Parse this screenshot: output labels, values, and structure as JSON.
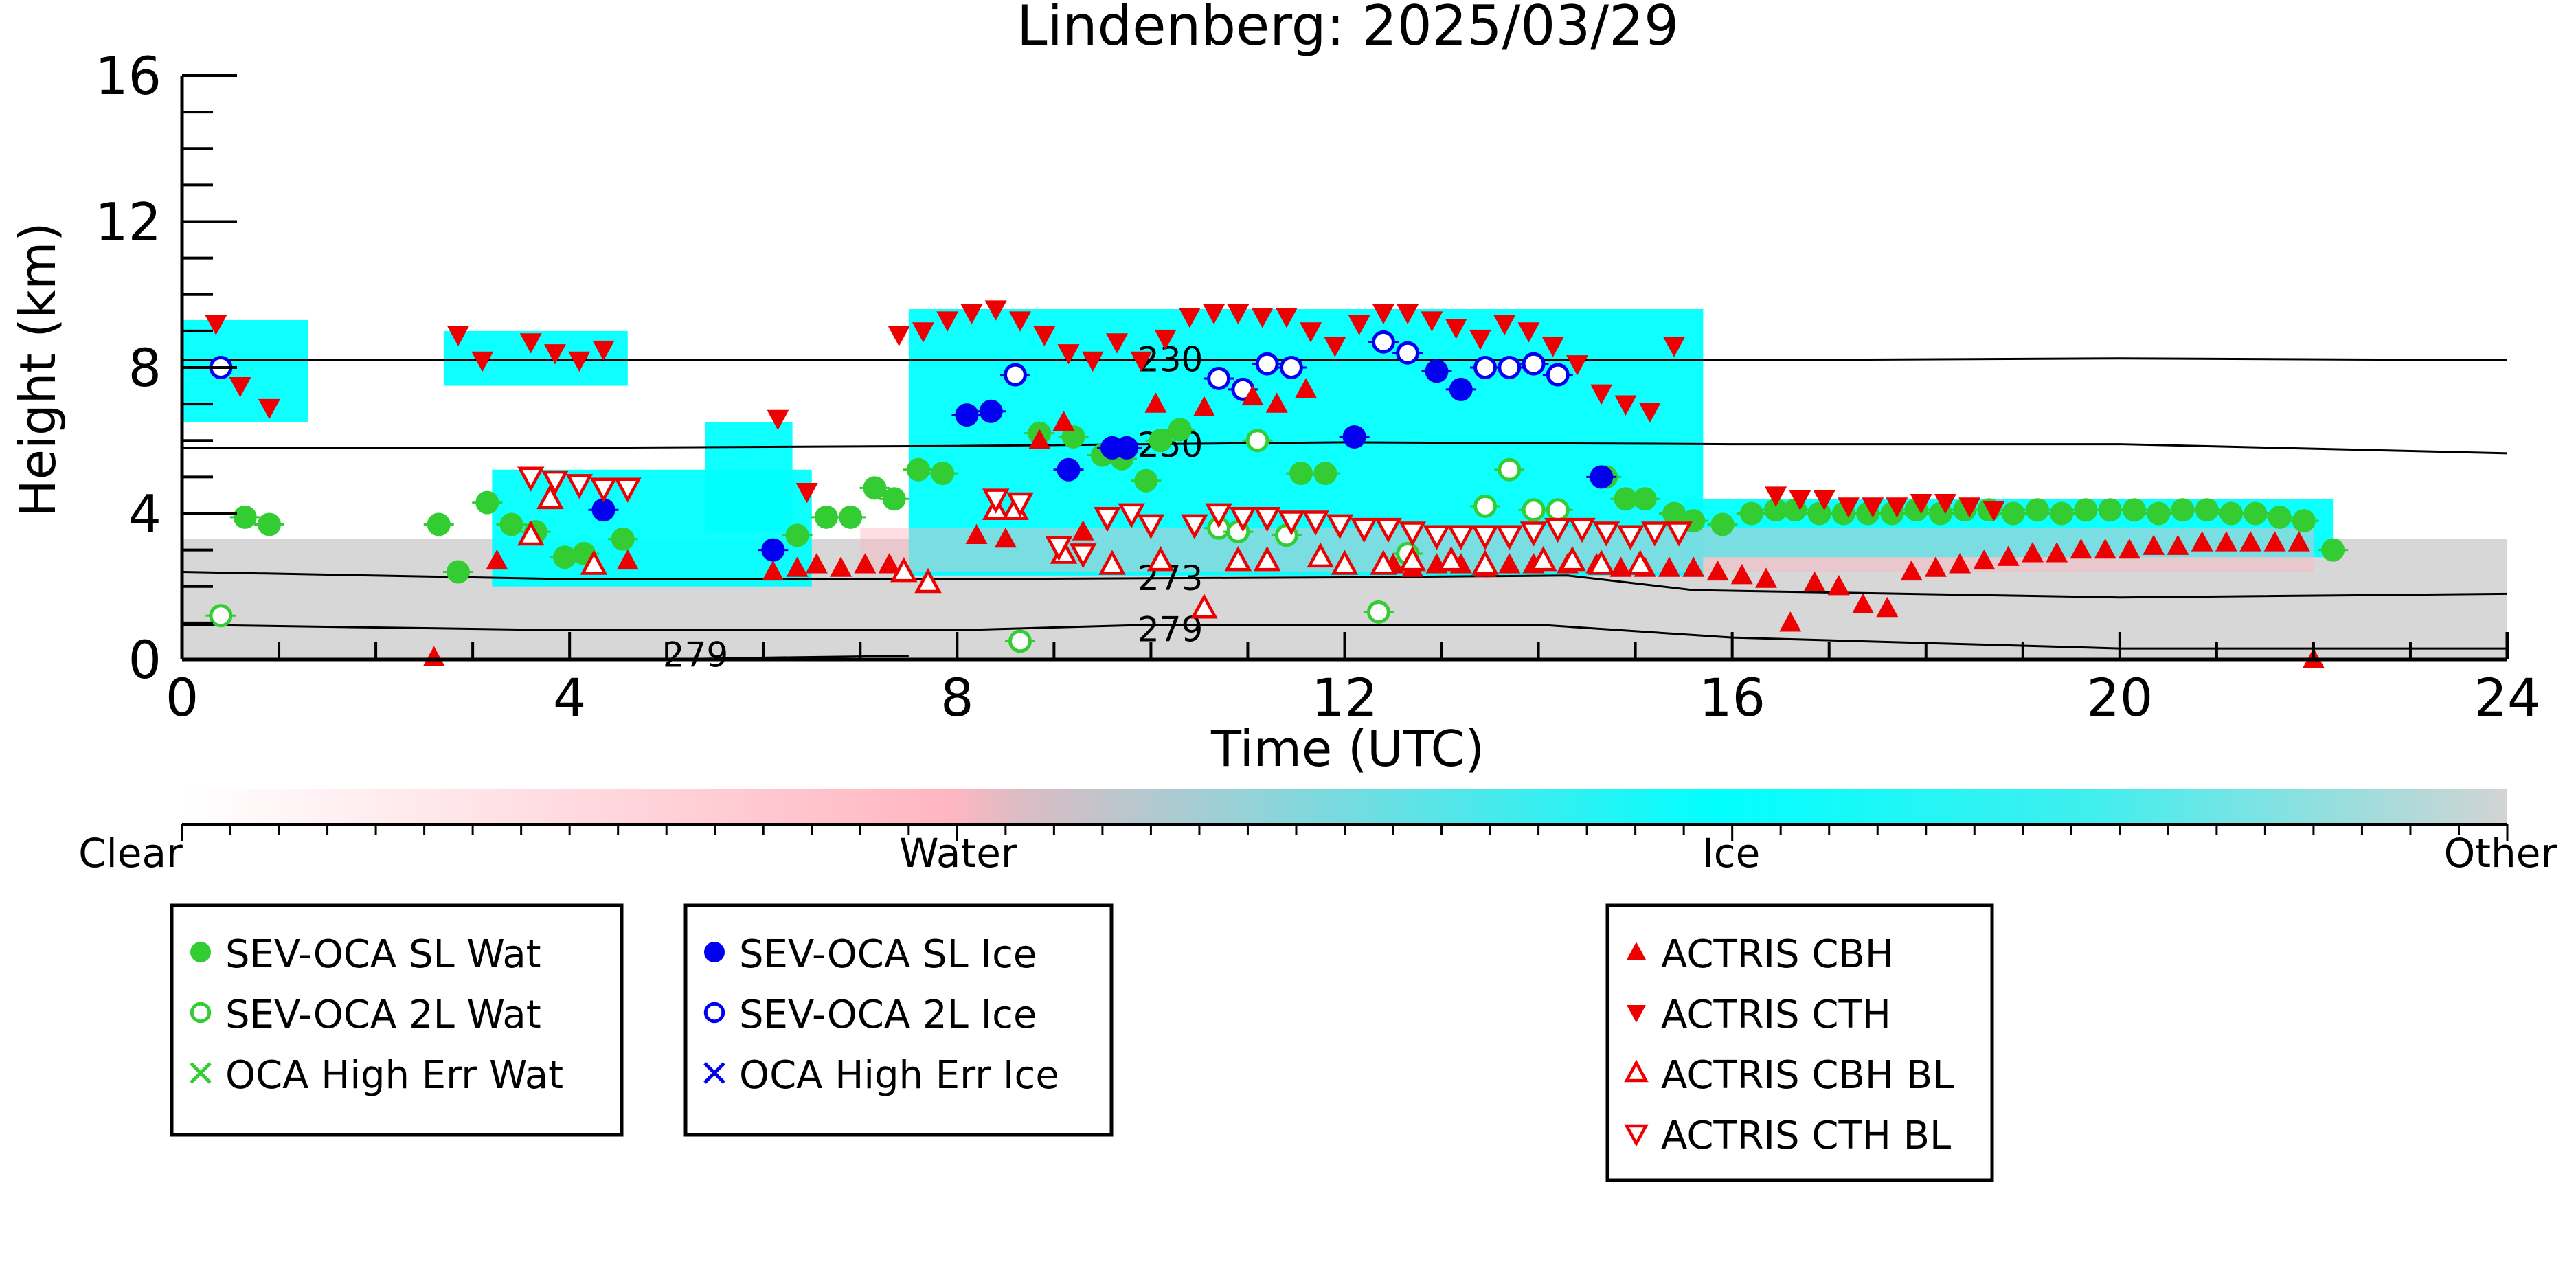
{
  "chart_data": {
    "type": "scatter",
    "title": "Lindenberg: 2025/03/29",
    "xlabel": "Time (UTC)",
    "ylabel": "Height (km)",
    "xlim": [
      0,
      24
    ],
    "ylim": [
      0,
      16
    ],
    "x_ticks": [
      "0",
      "4",
      "8",
      "12",
      "16",
      "20",
      "24"
    ],
    "y_ticks": [
      "0",
      "4",
      "8",
      "12",
      "16"
    ],
    "grid": false,
    "background_field": {
      "name": "cloud classification",
      "colorbar_labels": [
        "Clear",
        "Water",
        "Ice",
        "Other"
      ],
      "colorbar_colors": [
        "#ffffff",
        "#ffb6c1",
        "#00ffff",
        "#d3d3d3"
      ],
      "cloud_regions": [
        {
          "class": "Ice",
          "x": [
            0.0,
            1.3
          ],
          "y": [
            6.5,
            9.3
          ]
        },
        {
          "class": "Ice",
          "x": [
            2.7,
            4.6
          ],
          "y": [
            7.5,
            9.0
          ]
        },
        {
          "class": "Ice",
          "x": [
            3.2,
            6.5
          ],
          "y": [
            2.0,
            5.2
          ]
        },
        {
          "class": "Ice",
          "x": [
            5.4,
            6.3
          ],
          "y": [
            3.5,
            6.5
          ]
        },
        {
          "class": "Ice",
          "x": [
            7.5,
            15.7
          ],
          "y": [
            2.3,
            9.6
          ]
        },
        {
          "class": "Ice",
          "x": [
            15.5,
            22.2
          ],
          "y": [
            2.8,
            4.4
          ]
        },
        {
          "class": "Water",
          "x": [
            7.0,
            22.0
          ],
          "y": [
            2.4,
            3.6
          ]
        },
        {
          "class": "Other",
          "x": [
            0.0,
            24.0
          ],
          "y": [
            0.0,
            3.3
          ]
        }
      ]
    },
    "isotherms": [
      {
        "label": "230",
        "x": [
          0,
          4,
          8,
          12,
          16,
          20,
          24
        ],
        "y": [
          8.2,
          8.2,
          8.2,
          8.2,
          8.2,
          8.25,
          8.2
        ]
      },
      {
        "label": "250",
        "x": [
          0,
          4,
          8,
          12,
          16,
          20,
          24
        ],
        "y": [
          5.8,
          5.8,
          5.85,
          5.95,
          5.9,
          5.9,
          5.65
        ]
      },
      {
        "label": "273",
        "x": [
          0,
          4,
          8,
          12,
          14.3,
          15.6,
          20,
          24
        ],
        "y": [
          2.4,
          2.2,
          2.2,
          2.25,
          2.3,
          1.9,
          1.7,
          1.8
        ]
      },
      {
        "label": "279",
        "x": [
          0,
          4,
          8,
          10,
          14,
          16,
          20,
          24
        ],
        "y": [
          0.95,
          0.8,
          0.8,
          0.95,
          0.95,
          0.6,
          0.3,
          0.3
        ]
      },
      {
        "label": "279",
        "x": [
          5.0,
          6.0,
          7.5
        ],
        "y": [
          0.0,
          0.05,
          0.1
        ]
      }
    ],
    "series": [
      {
        "name": "SEV-OCA SL Wat",
        "marker": "filled-circle",
        "color": "#33cc33",
        "x": [
          0.65,
          0.9,
          2.65,
          2.85,
          3.15,
          3.4,
          3.65,
          3.95,
          4.15,
          4.55,
          6.35,
          6.65,
          6.9,
          7.15,
          7.35,
          7.6,
          7.85,
          8.85,
          9.2,
          9.5,
          9.7,
          9.95,
          10.1,
          10.3,
          11.55,
          11.8,
          14.7,
          14.9,
          15.1,
          15.4,
          15.6,
          15.9,
          16.2,
          16.45,
          16.65,
          16.9,
          17.15,
          17.4,
          17.65,
          17.9,
          18.15,
          18.4,
          18.65,
          18.9,
          19.15,
          19.4,
          19.65,
          19.9,
          20.15,
          20.4,
          20.65,
          20.9,
          21.15,
          21.4,
          21.65,
          21.9,
          22.2
        ],
        "y": [
          3.9,
          3.7,
          3.7,
          2.4,
          4.3,
          3.7,
          3.5,
          2.8,
          2.9,
          3.3,
          3.4,
          3.9,
          3.9,
          4.7,
          4.4,
          5.2,
          5.1,
          6.2,
          6.1,
          5.6,
          5.5,
          4.9,
          6.0,
          6.3,
          5.1,
          5.1,
          5.0,
          4.4,
          4.4,
          4.0,
          3.8,
          3.7,
          4.0,
          4.1,
          4.1,
          4.0,
          4.0,
          4.0,
          4.0,
          4.1,
          4.0,
          4.1,
          4.1,
          4.0,
          4.1,
          4.0,
          4.1,
          4.1,
          4.1,
          4.0,
          4.1,
          4.1,
          4.0,
          4.0,
          3.9,
          3.8,
          3.0
        ]
      },
      {
        "name": "SEV-OCA 2L Wat",
        "marker": "open-circle",
        "color": "#33cc33",
        "x": [
          0.4,
          8.65,
          10.7,
          10.9,
          11.1,
          11.4,
          12.35,
          12.65,
          13.45,
          13.7,
          13.95,
          14.2
        ],
        "y": [
          1.2,
          0.5,
          3.6,
          3.5,
          6.0,
          3.4,
          1.3,
          2.9,
          4.2,
          5.2,
          4.1,
          4.1
        ]
      },
      {
        "name": "OCA High Err Wat",
        "marker": "x",
        "color": "#33cc33",
        "x": [],
        "y": []
      },
      {
        "name": "SEV-OCA SL Ice",
        "marker": "filled-circle",
        "color": "#0000ee",
        "x": [
          4.35,
          6.1,
          8.1,
          8.35,
          9.15,
          9.6,
          9.75,
          12.1,
          12.95,
          13.2,
          14.65
        ],
        "y": [
          4.1,
          3.0,
          6.7,
          6.8,
          5.2,
          5.8,
          5.8,
          6.1,
          7.9,
          7.4,
          5.0
        ]
      },
      {
        "name": "SEV-OCA 2L Ice",
        "marker": "open-circle",
        "color": "#0000ee",
        "x": [
          0.4,
          8.6,
          10.7,
          10.95,
          11.2,
          11.45,
          12.4,
          12.65,
          13.45,
          13.7,
          13.95,
          14.2
        ],
        "y": [
          8.0,
          7.8,
          7.7,
          7.4,
          8.1,
          8.0,
          8.7,
          8.4,
          8.0,
          8.0,
          8.1,
          7.8
        ]
      },
      {
        "name": "OCA High Err Ice",
        "marker": "x",
        "color": "#0000ee",
        "x": [],
        "y": []
      },
      {
        "name": "ACTRIS CBH",
        "marker": "triangle-up-filled",
        "color": "#ee0000",
        "x": [
          2.6,
          3.25,
          4.6,
          6.1,
          6.35,
          6.55,
          6.8,
          7.05,
          7.3,
          8.2,
          8.5,
          8.85,
          9.1,
          9.3,
          10.05,
          10.55,
          11.05,
          11.3,
          11.6,
          12.5,
          12.7,
          12.95,
          13.2,
          13.45,
          13.7,
          13.95,
          14.3,
          14.6,
          14.85,
          15.1,
          15.35,
          15.6,
          15.85,
          16.1,
          16.35,
          16.6,
          16.85,
          17.1,
          17.35,
          17.6,
          17.85,
          18.1,
          18.35,
          18.6,
          18.85,
          19.1,
          19.35,
          19.6,
          19.85,
          20.1,
          20.35,
          20.6,
          20.85,
          21.1,
          21.35,
          21.6,
          21.85,
          22.0
        ],
        "y": [
          0.05,
          2.7,
          2.7,
          2.4,
          2.5,
          2.6,
          2.5,
          2.6,
          2.6,
          3.4,
          3.3,
          6.0,
          6.5,
          3.5,
          7.0,
          6.9,
          7.2,
          7.0,
          7.4,
          2.6,
          2.5,
          2.6,
          2.6,
          2.5,
          2.6,
          2.6,
          2.6,
          2.6,
          2.5,
          2.5,
          2.5,
          2.5,
          2.4,
          2.3,
          2.2,
          1.0,
          2.1,
          2.0,
          1.5,
          1.4,
          2.4,
          2.5,
          2.6,
          2.7,
          2.8,
          2.9,
          2.9,
          3.0,
          3.0,
          3.0,
          3.1,
          3.1,
          3.2,
          3.2,
          3.2,
          3.2,
          3.2,
          0.0
        ]
      },
      {
        "name": "ACTRIS CTH",
        "marker": "triangle-down-filled",
        "color": "#ee0000",
        "x": [
          0.35,
          0.6,
          0.9,
          2.85,
          3.1,
          3.6,
          3.85,
          4.1,
          4.35,
          6.15,
          6.45,
          7.4,
          7.65,
          7.9,
          8.15,
          8.4,
          8.65,
          8.9,
          9.15,
          9.4,
          9.65,
          9.9,
          10.15,
          10.4,
          10.65,
          10.9,
          11.15,
          11.4,
          11.65,
          11.9,
          12.15,
          12.4,
          12.65,
          12.9,
          13.15,
          13.4,
          13.65,
          13.9,
          14.15,
          14.4,
          14.65,
          14.9,
          15.15,
          15.4,
          16.45,
          16.7,
          16.95,
          17.2,
          17.45,
          17.7,
          17.95,
          18.2,
          18.45,
          18.7
        ],
        "y": [
          9.2,
          7.5,
          6.9,
          8.9,
          8.2,
          8.7,
          8.4,
          8.2,
          8.5,
          6.6,
          4.6,
          8.9,
          9.0,
          9.3,
          9.5,
          9.6,
          9.3,
          8.9,
          8.4,
          8.2,
          8.7,
          8.2,
          8.8,
          9.4,
          9.5,
          9.5,
          9.4,
          9.4,
          9.0,
          8.6,
          9.2,
          9.5,
          9.5,
          9.3,
          9.1,
          8.8,
          9.2,
          9.0,
          8.6,
          8.1,
          7.3,
          7.0,
          6.8,
          8.6,
          4.5,
          4.4,
          4.4,
          4.2,
          4.2,
          4.2,
          4.3,
          4.3,
          4.2,
          4.1
        ]
      },
      {
        "name": "ACTRIS CBH BL",
        "marker": "triangle-up-open",
        "color": "#ee0000",
        "x": [
          3.6,
          3.8,
          4.25,
          7.45,
          7.7,
          8.4,
          8.6,
          9.1,
          9.6,
          10.1,
          10.55,
          10.9,
          11.2,
          11.75,
          12.0,
          12.4,
          12.7,
          13.1,
          13.45,
          14.05,
          14.35,
          14.65,
          15.05
        ],
        "y": [
          3.4,
          4.4,
          2.6,
          2.4,
          2.1,
          4.1,
          4.1,
          2.9,
          2.6,
          2.7,
          1.4,
          2.7,
          2.7,
          2.8,
          2.6,
          2.6,
          2.7,
          2.7,
          2.6,
          2.7,
          2.7,
          2.6,
          2.6
        ]
      },
      {
        "name": "ACTRIS CTH BL",
        "marker": "triangle-down-open",
        "color": "#ee0000",
        "x": [
          3.6,
          3.85,
          4.1,
          4.35,
          4.6,
          8.4,
          8.65,
          9.05,
          9.3,
          9.55,
          9.8,
          10.0,
          10.45,
          10.7,
          10.95,
          11.2,
          11.45,
          11.7,
          11.95,
          12.2,
          12.45,
          12.7,
          12.95,
          13.2,
          13.45,
          13.7,
          13.95,
          14.2,
          14.45,
          14.7,
          14.95,
          15.2,
          15.45
        ],
        "y": [
          5.0,
          4.9,
          4.8,
          4.7,
          4.7,
          4.4,
          4.3,
          3.1,
          2.9,
          3.9,
          4.0,
          3.7,
          3.7,
          4.0,
          3.9,
          3.9,
          3.8,
          3.8,
          3.7,
          3.6,
          3.6,
          3.5,
          3.4,
          3.4,
          3.4,
          3.4,
          3.5,
          3.6,
          3.6,
          3.5,
          3.4,
          3.5,
          3.5
        ]
      }
    ]
  }
}
